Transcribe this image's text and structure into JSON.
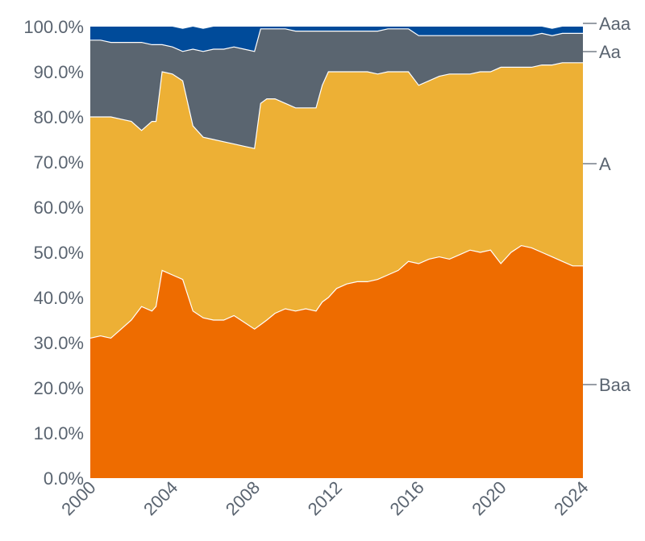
{
  "chart_data": {
    "type": "area",
    "stacked": true,
    "title": "",
    "xlabel": "",
    "ylabel": "",
    "ylim": [
      0,
      100
    ],
    "xlim": [
      2000,
      2024
    ],
    "grid": false,
    "legend_position": "right (inline labels)",
    "y_ticks": [
      "0.0%",
      "10.0%",
      "20.0%",
      "30.0%",
      "40.0%",
      "50.0%",
      "60.0%",
      "70.0%",
      "80.0%",
      "90.0%",
      "100.0%"
    ],
    "x_ticks": [
      "2000",
      "2004",
      "2008",
      "2012",
      "2016",
      "2020",
      "2024"
    ],
    "x": [
      2000,
      2000.5,
      2001,
      2001.5,
      2002,
      2002.5,
      2003,
      2003.2,
      2003.5,
      2004,
      2004.5,
      2005,
      2005.5,
      2006,
      2006.5,
      2007,
      2007.5,
      2008,
      2008.3,
      2008.6,
      2009,
      2009.5,
      2010,
      2010.5,
      2011,
      2011.3,
      2011.6,
      2012,
      2012.5,
      2013,
      2013.5,
      2014,
      2014.5,
      2015,
      2015.5,
      2016,
      2016.5,
      2017,
      2017.5,
      2018,
      2018.5,
      2019,
      2019.5,
      2020,
      2020.5,
      2021,
      2021.5,
      2022,
      2022.5,
      2023,
      2023.5,
      2024
    ],
    "series": [
      {
        "name": "Baa",
        "color": "#ee6c00",
        "values": [
          31,
          31.5,
          31,
          33,
          35,
          38,
          37,
          38,
          46,
          45,
          44,
          37,
          35.5,
          35,
          35,
          36,
          34.5,
          33,
          34,
          35,
          36.5,
          37.5,
          37,
          37.5,
          37,
          39,
          40,
          42,
          43,
          43.5,
          43.5,
          44,
          45,
          46,
          48,
          47.5,
          48.5,
          49,
          48.5,
          49.5,
          50.5,
          50,
          50.5,
          47.5,
          50,
          51.5,
          51,
          50,
          49,
          48,
          47,
          47
        ]
      },
      {
        "name": "A",
        "color": "#edb035",
        "values": [
          49,
          48.5,
          49,
          46.5,
          44,
          39,
          42,
          41,
          44,
          44.5,
          44,
          41,
          40,
          40,
          39.5,
          38,
          39,
          40,
          49,
          49,
          47.5,
          45.5,
          45,
          44.5,
          45,
          48,
          50,
          48,
          47,
          46.5,
          46.5,
          45.5,
          45,
          44,
          42,
          39.5,
          39.5,
          40,
          41,
          40,
          39,
          40,
          39.5,
          43.5,
          41,
          39.5,
          40,
          41.5,
          42.5,
          44,
          45,
          45
        ]
      },
      {
        "name": "Aa",
        "color": "#5a6570",
        "values": [
          17,
          17,
          16.5,
          17,
          17.5,
          19.5,
          17,
          17,
          6,
          6,
          6.5,
          17,
          19,
          20,
          20.5,
          21.5,
          21.5,
          21.5,
          16.5,
          15.5,
          15.5,
          16.5,
          17,
          17,
          17,
          12,
          9,
          9,
          9,
          9,
          9,
          9.5,
          9.5,
          9.5,
          9.5,
          11,
          10,
          9,
          8.5,
          8.5,
          8.5,
          8,
          8,
          7,
          7,
          7,
          7,
          7,
          6.5,
          6.5,
          6.5,
          6.5
        ]
      },
      {
        "name": "Aaa",
        "color": "#004b9a",
        "values": [
          3,
          3,
          3.5,
          3.5,
          3.5,
          3.5,
          4,
          4,
          4,
          4.5,
          5,
          5,
          5,
          5,
          5,
          4.5,
          5,
          5.5,
          0.5,
          0.5,
          0.5,
          0.5,
          1,
          1,
          1,
          1,
          1,
          1,
          1,
          1,
          1,
          1,
          1,
          1,
          1,
          2,
          2,
          2,
          2,
          2,
          2,
          2,
          2,
          2,
          2,
          2,
          2,
          1.5,
          1.5,
          1.5,
          1.5,
          1.5
        ]
      }
    ],
    "series_labels": [
      "Aaa",
      "Aa",
      "A",
      "Baa"
    ],
    "boundary_line_color": "#ffffff"
  },
  "axis": {
    "y_labels": [
      "0.0%",
      "10.0%",
      "20.0%",
      "30.0%",
      "40.0%",
      "50.0%",
      "60.0%",
      "70.0%",
      "80.0%",
      "90.0%",
      "100.0%"
    ],
    "x_labels": [
      "2000",
      "2004",
      "2008",
      "2012",
      "2016",
      "2020",
      "2024"
    ]
  },
  "legend": {
    "aaa": "Aaa",
    "aa": "Aa",
    "a": "A",
    "baa": "Baa"
  },
  "colors": {
    "text": "#5a6470",
    "baa": "#ee6c00",
    "a": "#edb035",
    "aa": "#5a6570",
    "aaa": "#004b9a"
  }
}
